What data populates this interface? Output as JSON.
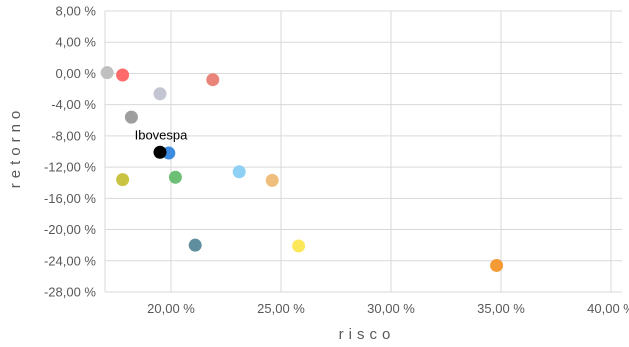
{
  "chart_data": {
    "type": "scatter",
    "xlabel": "risco",
    "ylabel": "retorno",
    "xlim": [
      17.0,
      40.5
    ],
    "ylim": [
      -28,
      8
    ],
    "x_ticks": [
      20,
      25,
      30,
      35,
      40
    ],
    "x_tick_labels": [
      "20,00 %",
      "25,00 %",
      "30,00 %",
      "35,00 %",
      "40,00 %"
    ],
    "y_ticks": [
      8,
      4,
      0,
      -4,
      -8,
      -12,
      -16,
      -20,
      -24,
      -28
    ],
    "y_tick_labels": [
      "8,00 %",
      "4,00 %",
      "0,00 %",
      "-4,00 %",
      "-8,00 %",
      "-12,00 %",
      "-16,00 %",
      "-20,00 %",
      "-24,00 %",
      "-28,00 %"
    ],
    "grid": true,
    "points": [
      {
        "x": 17.1,
        "y": 0.1,
        "color": "#c0c0c0"
      },
      {
        "x": 17.8,
        "y": -0.2,
        "color": "#ff6b6b"
      },
      {
        "x": 21.9,
        "y": -0.8,
        "color": "#e8847a"
      },
      {
        "x": 19.5,
        "y": -2.6,
        "color": "#c3c5d3"
      },
      {
        "x": 18.2,
        "y": -5.6,
        "color": "#9e9e9e"
      },
      {
        "x": 19.9,
        "y": -10.2,
        "color": "#3d8be0"
      },
      {
        "x": 19.5,
        "y": -10.1,
        "color": "#000000",
        "label": "Ibovespa"
      },
      {
        "x": 17.8,
        "y": -13.6,
        "color": "#c9c442"
      },
      {
        "x": 20.2,
        "y": -13.3,
        "color": "#6cbf74"
      },
      {
        "x": 23.1,
        "y": -12.6,
        "color": "#8fd0f5"
      },
      {
        "x": 24.6,
        "y": -13.7,
        "color": "#efbe7d"
      },
      {
        "x": 21.1,
        "y": -22.0,
        "color": "#5f8f9e"
      },
      {
        "x": 25.8,
        "y": -22.1,
        "color": "#fde85b"
      },
      {
        "x": 34.8,
        "y": -24.6,
        "color": "#f39a34"
      }
    ]
  }
}
